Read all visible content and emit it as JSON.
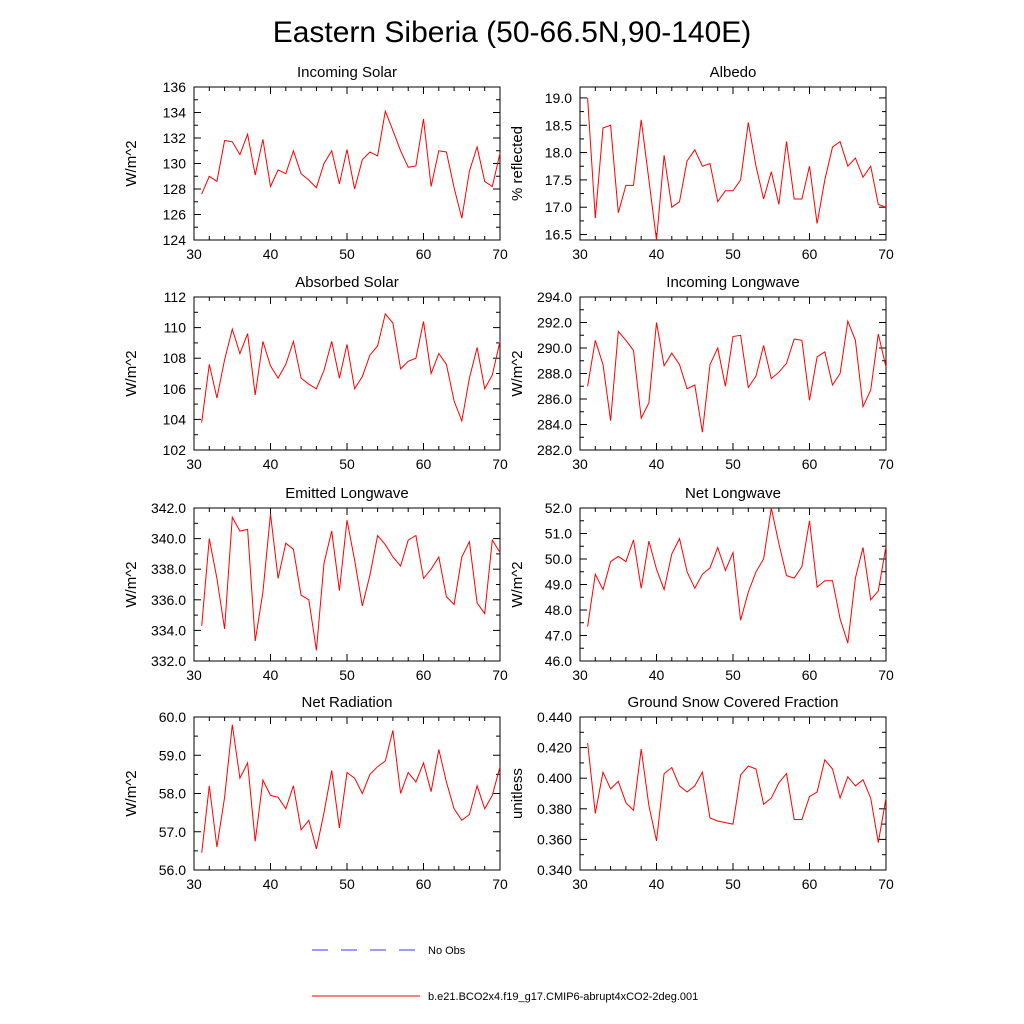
{
  "figure_title": "Eastern Siberia (50-66.5N,90-140E)",
  "line_color": "#ff0000",
  "obs_line_color": "#3a3aff",
  "legend": [
    {
      "label": "No Obs",
      "style": "dashed",
      "color": "#3a3aff"
    },
    {
      "label": "b.e21.BCO2x4.f19_g17.CMIP6-abrupt4xCO2-2deg.001",
      "style": "solid",
      "color": "#ff0000"
    }
  ],
  "chart_data": [
    {
      "type": "line",
      "title": "Incoming Solar",
      "ylabel": "W/m^2",
      "xlim": [
        30,
        70
      ],
      "ylim": [
        124,
        136
      ],
      "xticks": [
        30,
        40,
        50,
        60,
        70
      ],
      "xtick_labels": [
        "30",
        "40",
        "50",
        "60",
        "70"
      ],
      "yticks": [
        124,
        126,
        128,
        130,
        132,
        134,
        136
      ],
      "ytick_labels": [
        "124",
        "126",
        "128",
        "130",
        "132",
        "134",
        "136"
      ],
      "x": [
        31,
        32,
        33,
        34,
        35,
        36,
        37,
        38,
        39,
        40,
        41,
        42,
        43,
        44,
        45,
        46,
        47,
        48,
        49,
        50,
        51,
        52,
        53,
        54,
        55,
        56,
        57,
        58,
        59,
        60,
        61,
        62,
        63,
        64,
        65,
        66,
        67,
        68,
        69,
        70
      ],
      "y": [
        127.6,
        129.0,
        128.6,
        131.8,
        131.7,
        130.7,
        132.3,
        129.1,
        131.9,
        128.2,
        129.5,
        129.2,
        131.0,
        129.2,
        128.7,
        128.1,
        130.0,
        131.0,
        128.4,
        131.1,
        128.0,
        130.3,
        130.9,
        130.6,
        134.1,
        132.6,
        131.0,
        129.7,
        129.8,
        133.5,
        128.2,
        131.0,
        130.9,
        128.1,
        125.7,
        129.4,
        131.3,
        128.6,
        128.2,
        130.8
      ]
    },
    {
      "type": "line",
      "title": "Albedo",
      "ylabel": "% reflected",
      "xlim": [
        30,
        70
      ],
      "ylim": [
        16.4,
        19.2
      ],
      "xticks": [
        30,
        40,
        50,
        60,
        70
      ],
      "xtick_labels": [
        "30",
        "40",
        "50",
        "60",
        "70"
      ],
      "yticks": [
        16.5,
        17.0,
        17.5,
        18.0,
        18.5,
        19.0
      ],
      "ytick_labels": [
        "16.5",
        "17.0",
        "17.5",
        "18.0",
        "18.5",
        "19.0"
      ],
      "x": [
        31,
        32,
        33,
        34,
        35,
        36,
        37,
        38,
        39,
        40,
        41,
        42,
        43,
        44,
        45,
        46,
        47,
        48,
        49,
        50,
        51,
        52,
        53,
        54,
        55,
        56,
        57,
        58,
        59,
        60,
        61,
        62,
        63,
        64,
        65,
        66,
        67,
        68,
        69,
        70
      ],
      "y": [
        19.0,
        16.8,
        18.45,
        18.5,
        16.9,
        17.4,
        17.4,
        18.6,
        17.5,
        16.4,
        17.95,
        17.0,
        17.1,
        17.85,
        18.05,
        17.75,
        17.8,
        17.1,
        17.3,
        17.3,
        17.5,
        18.55,
        17.75,
        17.15,
        17.65,
        17.05,
        18.2,
        17.15,
        17.15,
        17.75,
        16.7,
        17.5,
        18.1,
        18.2,
        17.75,
        17.9,
        17.55,
        17.75,
        17.05,
        17.0
      ]
    },
    {
      "type": "line",
      "title": "Absorbed Solar",
      "ylabel": "W/m^2",
      "xlim": [
        30,
        70
      ],
      "ylim": [
        102,
        112
      ],
      "xticks": [
        30,
        40,
        50,
        60,
        70
      ],
      "xtick_labels": [
        "30",
        "40",
        "50",
        "60",
        "70"
      ],
      "yticks": [
        102,
        104,
        106,
        108,
        110,
        112
      ],
      "ytick_labels": [
        "102",
        "104",
        "106",
        "108",
        "110",
        "112"
      ],
      "x": [
        31,
        32,
        33,
        34,
        35,
        36,
        37,
        38,
        39,
        40,
        41,
        42,
        43,
        44,
        45,
        46,
        47,
        48,
        49,
        50,
        51,
        52,
        53,
        54,
        55,
        56,
        57,
        58,
        59,
        60,
        61,
        62,
        63,
        64,
        65,
        66,
        67,
        68,
        69,
        70
      ],
      "y": [
        103.8,
        107.6,
        105.4,
        107.9,
        109.9,
        108.3,
        109.6,
        105.6,
        109.1,
        107.5,
        106.7,
        107.6,
        109.1,
        106.7,
        106.3,
        106.0,
        107.2,
        109.1,
        106.7,
        108.9,
        106.0,
        106.8,
        108.2,
        108.8,
        110.9,
        110.3,
        107.3,
        107.8,
        108.0,
        110.4,
        107.0,
        108.3,
        107.6,
        105.2,
        103.9,
        106.7,
        108.7,
        106.0,
        106.9,
        109.1
      ]
    },
    {
      "type": "line",
      "title": "Incoming Longwave",
      "ylabel": "W/m^2",
      "xlim": [
        30,
        70
      ],
      "ylim": [
        282.0,
        294.0
      ],
      "xticks": [
        30,
        40,
        50,
        60,
        70
      ],
      "xtick_labels": [
        "30",
        "40",
        "50",
        "60",
        "70"
      ],
      "yticks": [
        282.0,
        284.0,
        286.0,
        288.0,
        290.0,
        292.0,
        294.0
      ],
      "ytick_labels": [
        "282.0",
        "284.0",
        "286.0",
        "288.0",
        "290.0",
        "292.0",
        "294.0"
      ],
      "x": [
        31,
        32,
        33,
        34,
        35,
        36,
        37,
        38,
        39,
        40,
        41,
        42,
        43,
        44,
        45,
        46,
        47,
        48,
        49,
        50,
        51,
        52,
        53,
        54,
        55,
        56,
        57,
        58,
        59,
        60,
        61,
        62,
        63,
        64,
        65,
        66,
        67,
        68,
        69,
        70
      ],
      "y": [
        287.0,
        290.6,
        288.7,
        284.3,
        291.3,
        290.6,
        289.8,
        284.5,
        285.7,
        292.0,
        288.6,
        289.6,
        288.7,
        286.8,
        287.1,
        283.4,
        288.7,
        290.0,
        287.0,
        290.9,
        291.0,
        286.9,
        287.8,
        290.2,
        287.6,
        288.1,
        288.8,
        290.7,
        290.6,
        285.9,
        289.3,
        289.7,
        287.1,
        288.0,
        292.1,
        290.6,
        285.4,
        286.7,
        291.1,
        288.5
      ]
    },
    {
      "type": "line",
      "title": "Emitted Longwave",
      "ylabel": "W/m^2",
      "xlim": [
        30,
        70
      ],
      "ylim": [
        332.0,
        342.0
      ],
      "xticks": [
        30,
        40,
        50,
        60,
        70
      ],
      "xtick_labels": [
        "30",
        "40",
        "50",
        "60",
        "70"
      ],
      "yticks": [
        332.0,
        334.0,
        336.0,
        338.0,
        340.0,
        342.0
      ],
      "ytick_labels": [
        "332.0",
        "334.0",
        "336.0",
        "338.0",
        "340.0",
        "342.0"
      ],
      "x": [
        31,
        32,
        33,
        34,
        35,
        36,
        37,
        38,
        39,
        40,
        41,
        42,
        43,
        44,
        45,
        46,
        47,
        48,
        49,
        50,
        51,
        52,
        53,
        54,
        55,
        56,
        57,
        58,
        59,
        60,
        61,
        62,
        63,
        64,
        65,
        66,
        67,
        68,
        69,
        70
      ],
      "y": [
        334.3,
        340.0,
        337.4,
        334.1,
        341.4,
        340.5,
        340.6,
        333.3,
        336.5,
        341.6,
        337.4,
        339.7,
        339.3,
        336.3,
        336.0,
        332.7,
        338.4,
        340.5,
        336.6,
        341.2,
        338.6,
        335.6,
        337.6,
        340.2,
        339.6,
        338.8,
        338.2,
        339.9,
        340.2,
        337.4,
        338.0,
        338.8,
        336.2,
        335.7,
        338.8,
        339.8,
        335.8,
        335.1,
        339.9,
        339.1
      ]
    },
    {
      "type": "line",
      "title": "Net Longwave",
      "ylabel": "W/m^2",
      "xlim": [
        30,
        70
      ],
      "ylim": [
        46.0,
        52.0
      ],
      "xticks": [
        30,
        40,
        50,
        60,
        70
      ],
      "xtick_labels": [
        "30",
        "40",
        "50",
        "60",
        "70"
      ],
      "yticks": [
        46.0,
        47.0,
        48.0,
        49.0,
        50.0,
        51.0,
        52.0
      ],
      "ytick_labels": [
        "46.0",
        "47.0",
        "48.0",
        "49.0",
        "50.0",
        "51.0",
        "52.0"
      ],
      "x": [
        31,
        32,
        33,
        34,
        35,
        36,
        37,
        38,
        39,
        40,
        41,
        42,
        43,
        44,
        45,
        46,
        47,
        48,
        49,
        50,
        51,
        52,
        53,
        54,
        55,
        56,
        57,
        58,
        59,
        60,
        61,
        62,
        63,
        64,
        65,
        66,
        67,
        68,
        69,
        70
      ],
      "y": [
        47.35,
        49.4,
        48.8,
        49.9,
        50.1,
        49.9,
        50.75,
        48.85,
        50.7,
        49.6,
        48.8,
        50.2,
        50.8,
        49.5,
        48.85,
        49.4,
        49.65,
        50.45,
        49.55,
        50.25,
        47.6,
        48.7,
        49.5,
        50.0,
        52.0,
        50.6,
        49.35,
        49.25,
        49.7,
        51.5,
        48.9,
        49.15,
        49.15,
        47.65,
        46.7,
        49.25,
        50.45,
        48.4,
        48.75,
        50.5
      ]
    },
    {
      "type": "line",
      "title": "Net Radiation",
      "ylabel": "W/m^2",
      "xlim": [
        30,
        70
      ],
      "ylim": [
        56.0,
        60.0
      ],
      "xticks": [
        30,
        40,
        50,
        60,
        70
      ],
      "xtick_labels": [
        "30",
        "40",
        "50",
        "60",
        "70"
      ],
      "yticks": [
        56.0,
        57.0,
        58.0,
        59.0,
        60.0
      ],
      "ytick_labels": [
        "56.0",
        "57.0",
        "58.0",
        "59.0",
        "60.0"
      ],
      "x": [
        31,
        32,
        33,
        34,
        35,
        36,
        37,
        38,
        39,
        40,
        41,
        42,
        43,
        44,
        45,
        46,
        47,
        48,
        49,
        50,
        51,
        52,
        53,
        54,
        55,
        56,
        57,
        58,
        59,
        60,
        61,
        62,
        63,
        64,
        65,
        66,
        67,
        68,
        69,
        70
      ],
      "y": [
        56.45,
        58.2,
        56.6,
        57.9,
        59.8,
        58.4,
        58.8,
        56.75,
        58.35,
        57.95,
        57.9,
        57.6,
        58.2,
        57.05,
        57.3,
        56.55,
        57.5,
        58.6,
        57.1,
        58.55,
        58.4,
        58.0,
        58.5,
        58.7,
        58.85,
        59.65,
        58.0,
        58.55,
        58.3,
        58.8,
        58.05,
        59.15,
        58.3,
        57.6,
        57.3,
        57.45,
        58.2,
        57.6,
        57.95,
        58.7
      ]
    },
    {
      "type": "line",
      "title": "Ground Snow Covered Fraction",
      "ylabel": "unitless",
      "xlim": [
        30,
        70
      ],
      "ylim": [
        0.34,
        0.44
      ],
      "xticks": [
        30,
        40,
        50,
        60,
        70
      ],
      "xtick_labels": [
        "30",
        "40",
        "50",
        "60",
        "70"
      ],
      "yticks": [
        0.34,
        0.36,
        0.38,
        0.4,
        0.42,
        0.44
      ],
      "ytick_labels": [
        "0.340",
        "0.360",
        "0.380",
        "0.400",
        "0.420",
        "0.440"
      ],
      "x": [
        31,
        32,
        33,
        34,
        35,
        36,
        37,
        38,
        39,
        40,
        41,
        42,
        43,
        44,
        45,
        46,
        47,
        48,
        49,
        50,
        51,
        52,
        53,
        54,
        55,
        56,
        57,
        58,
        59,
        60,
        61,
        62,
        63,
        64,
        65,
        66,
        67,
        68,
        69,
        70
      ],
      "y": [
        0.423,
        0.377,
        0.404,
        0.393,
        0.398,
        0.384,
        0.379,
        0.419,
        0.382,
        0.359,
        0.403,
        0.407,
        0.395,
        0.391,
        0.395,
        0.404,
        0.374,
        0.372,
        0.371,
        0.37,
        0.402,
        0.408,
        0.406,
        0.383,
        0.387,
        0.397,
        0.403,
        0.373,
        0.373,
        0.388,
        0.391,
        0.412,
        0.406,
        0.387,
        0.401,
        0.395,
        0.399,
        0.387,
        0.358,
        0.387
      ]
    }
  ]
}
